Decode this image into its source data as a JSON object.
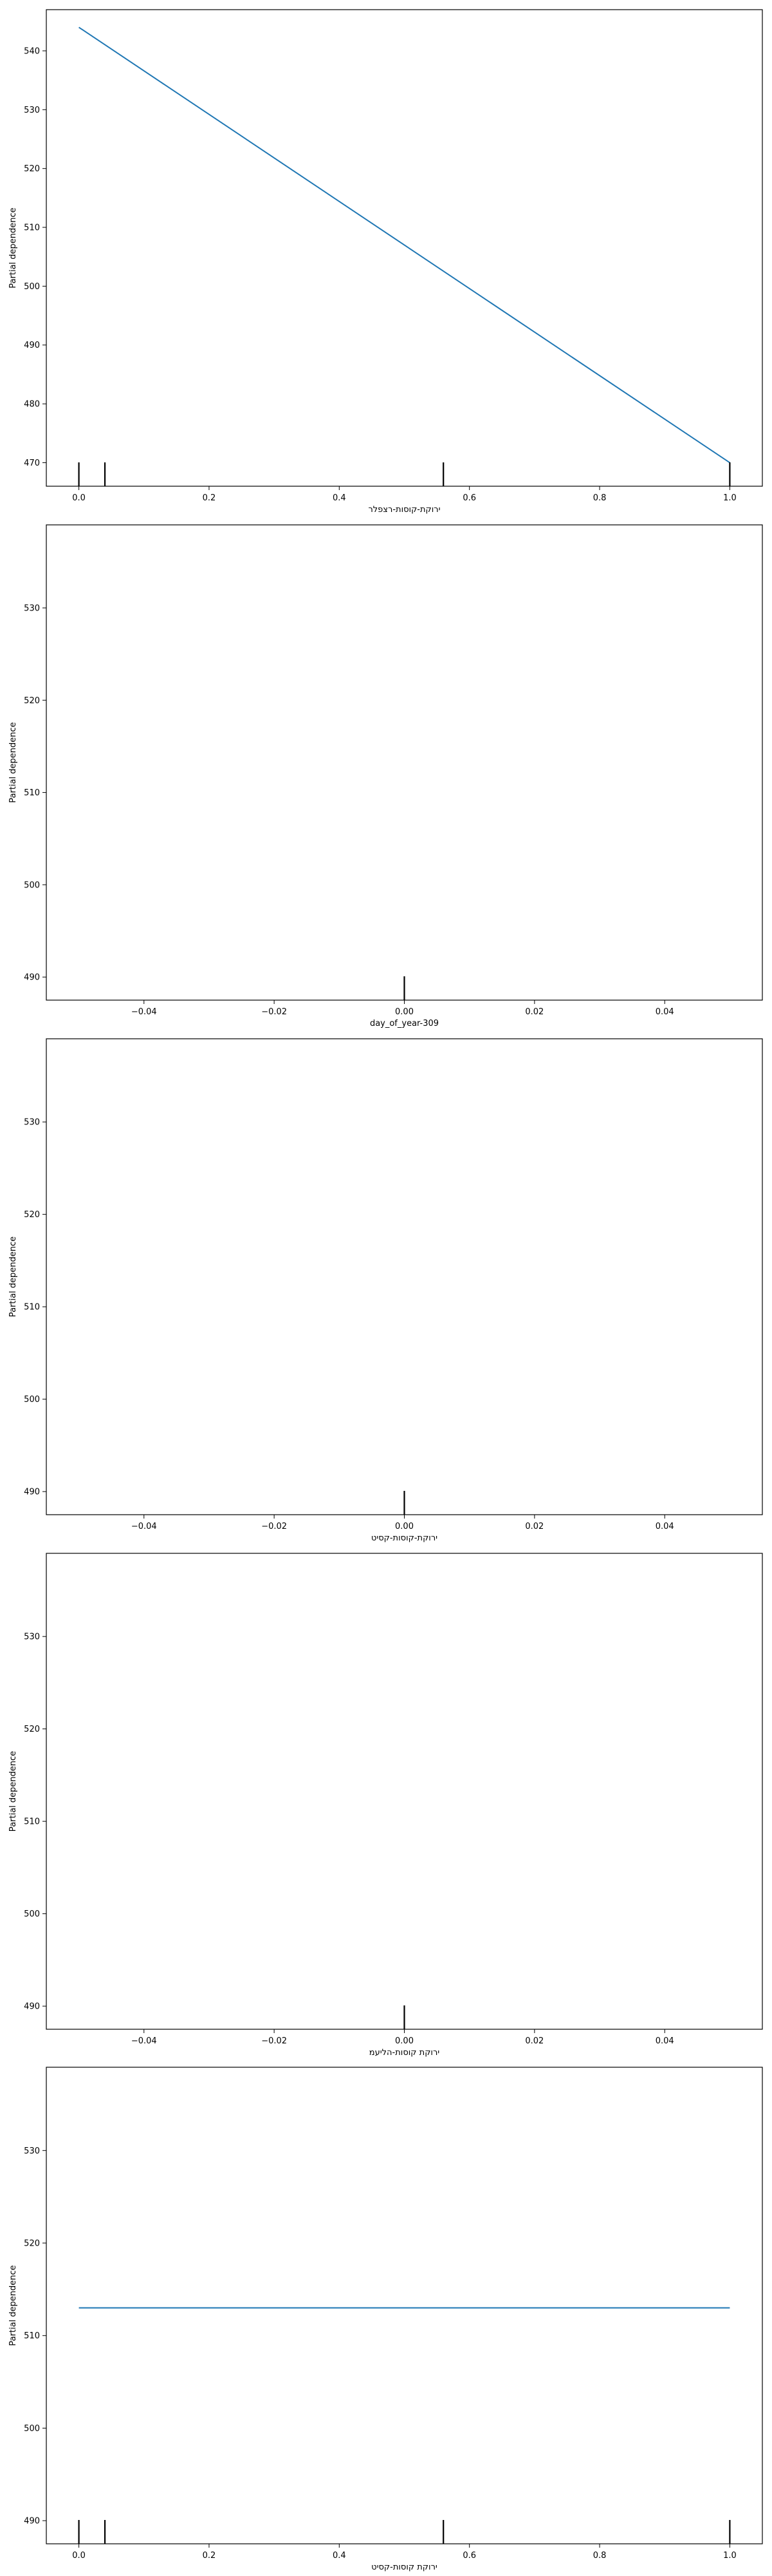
{
  "colors": {
    "line": "#1f77b4",
    "rug": "#000000",
    "frame": "#000000",
    "background": "#ffffff"
  },
  "chart_data": [
    {
      "type": "line",
      "ylabel": "Partial dependence",
      "xlabel": "ירוקת-קוסות-רצפלר",
      "xlim": [
        -0.05,
        1.05
      ],
      "ylim": [
        466,
        547
      ],
      "xticks": [
        0.0,
        0.2,
        0.4,
        0.6,
        0.8,
        1.0
      ],
      "xtick_labels": [
        "0.0",
        "0.2",
        "0.4",
        "0.6",
        "0.8",
        "1.0"
      ],
      "yticks": [
        470,
        480,
        490,
        500,
        510,
        520,
        530,
        540
      ],
      "ytick_labels": [
        "470",
        "480",
        "490",
        "500",
        "510",
        "520",
        "530",
        "540"
      ],
      "x": [
        0.0,
        1.0
      ],
      "y": [
        544,
        470
      ],
      "rug": [
        0.0,
        0.04,
        0.56,
        1.0
      ]
    },
    {
      "type": "line",
      "ylabel": "Partial dependence",
      "xlabel": "day_of_year-309",
      "xlim": [
        -0.055,
        0.055
      ],
      "ylim": [
        487.5,
        539
      ],
      "xticks": [
        -0.04,
        -0.02,
        0.0,
        0.02,
        0.04
      ],
      "xtick_labels": [
        "−0.04",
        "−0.02",
        "0.00",
        "0.02",
        "0.04"
      ],
      "yticks": [
        490,
        500,
        510,
        520,
        530
      ],
      "ytick_labels": [
        "490",
        "500",
        "510",
        "520",
        "530"
      ],
      "x": [],
      "y": [],
      "rug": [
        0.0
      ]
    },
    {
      "type": "line",
      "ylabel": "Partial dependence",
      "xlabel": "ירוקת-קוסות-קסיט",
      "xlim": [
        -0.055,
        0.055
      ],
      "ylim": [
        487.5,
        539
      ],
      "xticks": [
        -0.04,
        -0.02,
        0.0,
        0.02,
        0.04
      ],
      "xtick_labels": [
        "−0.04",
        "−0.02",
        "0.00",
        "0.02",
        "0.04"
      ],
      "yticks": [
        490,
        500,
        510,
        520,
        530
      ],
      "ytick_labels": [
        "490",
        "500",
        "510",
        "520",
        "530"
      ],
      "x": [],
      "y": [],
      "rug": [
        0.0
      ]
    },
    {
      "type": "line",
      "ylabel": "Partial dependence",
      "xlabel": "ירוקת קוסות-הליעמ",
      "xlim": [
        -0.055,
        0.055
      ],
      "ylim": [
        487.5,
        539
      ],
      "xticks": [
        -0.04,
        -0.02,
        0.0,
        0.02,
        0.04
      ],
      "xtick_labels": [
        "−0.04",
        "−0.02",
        "0.00",
        "0.02",
        "0.04"
      ],
      "yticks": [
        490,
        500,
        510,
        520,
        530
      ],
      "ytick_labels": [
        "490",
        "500",
        "510",
        "520",
        "530"
      ],
      "x": [],
      "y": [],
      "rug": [
        0.0
      ]
    },
    {
      "type": "line",
      "ylabel": "Partial dependence",
      "xlabel": "ירוקת קוסות-קסיט",
      "xlim": [
        -0.05,
        1.05
      ],
      "ylim": [
        487.5,
        539
      ],
      "xticks": [
        0.0,
        0.2,
        0.4,
        0.6,
        0.8,
        1.0
      ],
      "xtick_labels": [
        "0.0",
        "0.2",
        "0.4",
        "0.6",
        "0.8",
        "1.0"
      ],
      "yticks": [
        490,
        500,
        510,
        520,
        530
      ],
      "ytick_labels": [
        "490",
        "500",
        "510",
        "520",
        "530"
      ],
      "x": [
        0.0,
        1.0
      ],
      "y": [
        513,
        513
      ],
      "rug": [
        0.0,
        0.04,
        0.56,
        1.0
      ]
    }
  ]
}
